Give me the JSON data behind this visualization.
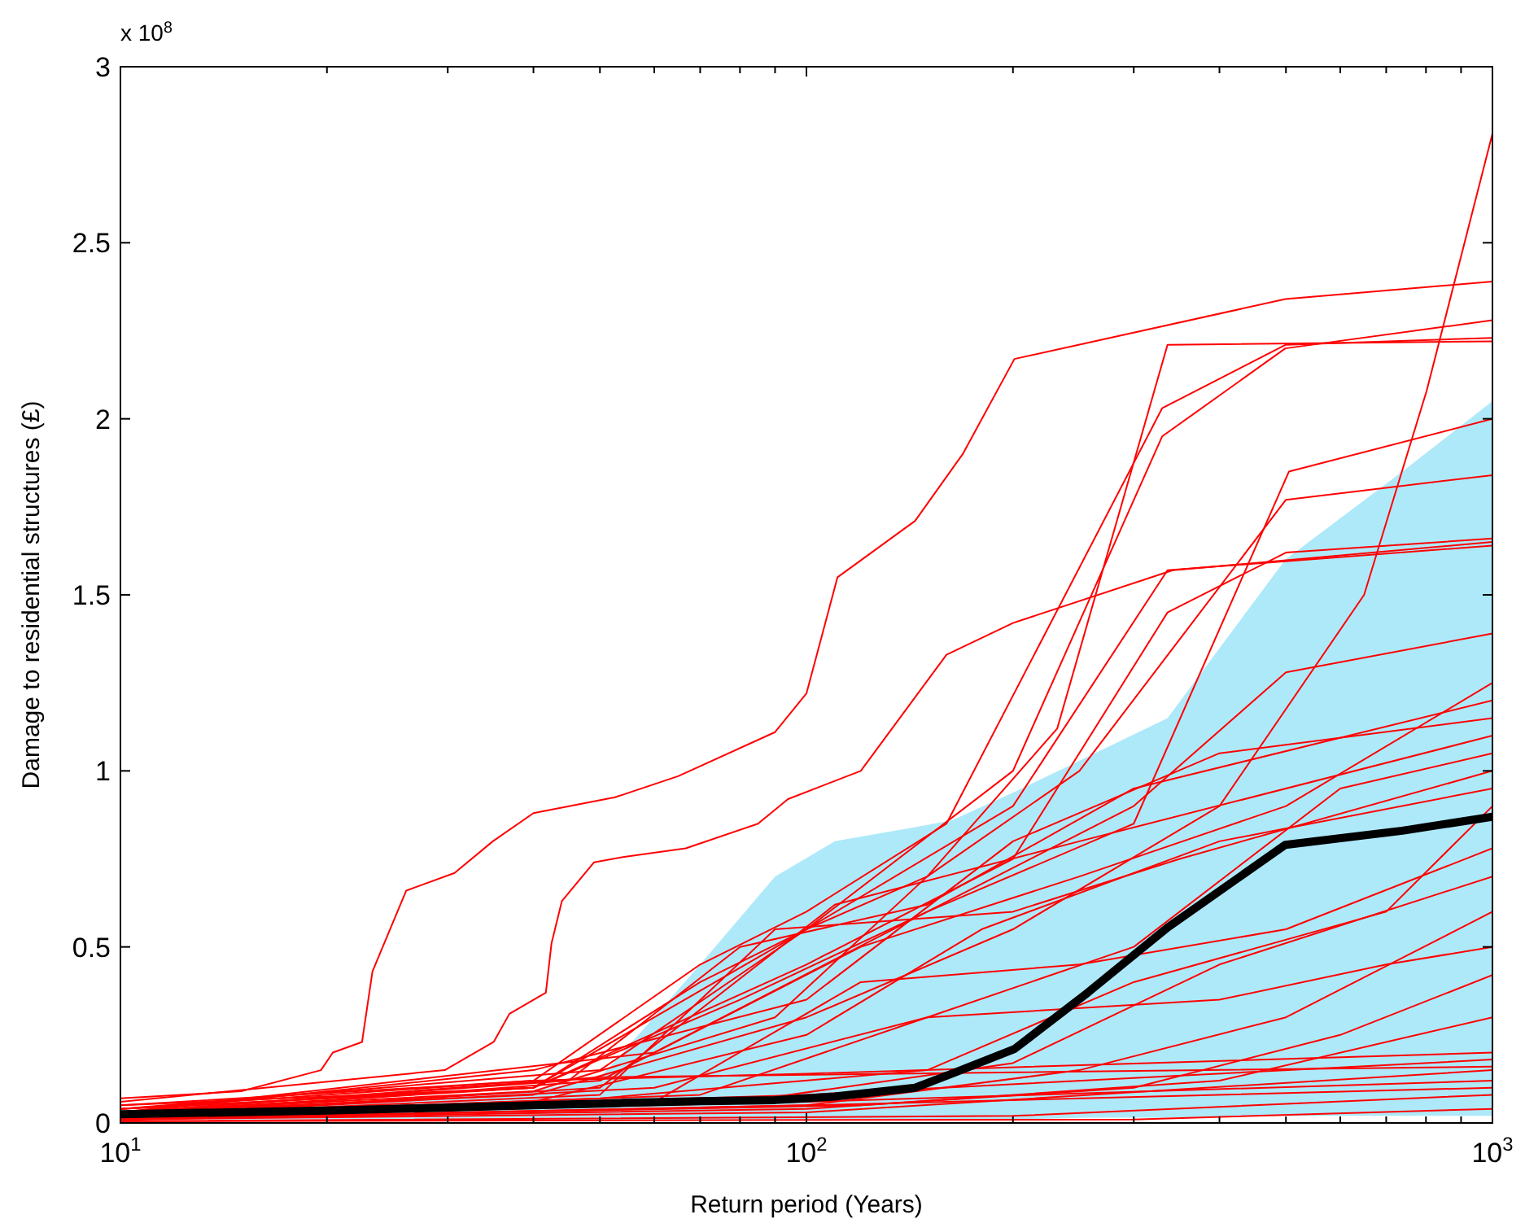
{
  "chart_data": {
    "type": "line",
    "xlabel": "Return period (Years)",
    "ylabel": "Damage to residential structures (£)",
    "annotations": [
      "x 10$^{8}$"
    ],
    "log": "x",
    "xlim": [
      10,
      1000
    ],
    "ylim": [
      0,
      3
    ],
    "xticks": [
      {
        "value": 10,
        "label": "10$^{1}$"
      },
      {
        "value": 20,
        "label": null
      },
      {
        "value": 30,
        "label": null
      },
      {
        "value": 40,
        "label": null
      },
      {
        "value": 50,
        "label": null
      },
      {
        "value": 60,
        "label": null
      },
      {
        "value": 70,
        "label": null
      },
      {
        "value": 80,
        "label": null
      },
      {
        "value": 90,
        "label": null
      },
      {
        "value": 100,
        "label": "10$^{2}$"
      },
      {
        "value": 200,
        "label": null
      },
      {
        "value": 300,
        "label": null
      },
      {
        "value": 400,
        "label": null
      },
      {
        "value": 500,
        "label": null
      },
      {
        "value": 600,
        "label": null
      },
      {
        "value": 700,
        "label": null
      },
      {
        "value": 800,
        "label": null
      },
      {
        "value": 900,
        "label": null
      },
      {
        "value": 1000,
        "label": "10$^{3}$"
      }
    ],
    "yticks": [
      0,
      0.5,
      1,
      1.5,
      2,
      2.5,
      3
    ],
    "grid": false,
    "series": [
      {
        "color": "#ff0000",
        "x": [
          10,
          15,
          19.6,
          20.4,
          22.5,
          23.3,
          26.1,
          30.7,
          34.9,
          40,
          52.6,
          65,
          90,
          100,
          111,
          144,
          169,
          201,
          499,
          1000
        ],
        "values": [
          0.07,
          0.09,
          0.15,
          0.2,
          0.23,
          0.43,
          0.66,
          0.71,
          0.8,
          0.88,
          0.925,
          0.985,
          1.11,
          1.22,
          1.55,
          1.71,
          1.9,
          2.17,
          2.34,
          2.39
        ]
      },
      {
        "color": "#ff0000",
        "x": [
          10,
          29.7,
          35,
          36.9,
          41.7,
          42.5,
          44,
          49,
          54,
          66.7,
          85,
          94,
          120,
          160,
          200,
          342,
          1000
        ],
        "values": [
          0.06,
          0.15,
          0.23,
          0.31,
          0.37,
          0.51,
          0.63,
          0.74,
          0.755,
          0.78,
          0.85,
          0.92,
          1.0,
          1.33,
          1.42,
          1.57,
          1.65
        ]
      },
      {
        "color": "#ff0000",
        "x": [
          10,
          40,
          60,
          100,
          150,
          232,
          336,
          1000
        ],
        "values": [
          0.05,
          0.1,
          0.3,
          0.55,
          0.7,
          1.12,
          2.21,
          2.22
        ]
      },
      {
        "color": "#ff0000",
        "x": [
          10,
          40,
          70,
          100,
          160,
          330,
          499,
          1000
        ],
        "values": [
          0.05,
          0.12,
          0.45,
          0.6,
          0.85,
          2.03,
          2.21,
          2.23
        ]
      },
      {
        "color": "#ff0000",
        "x": [
          10,
          40,
          70,
          100,
          200,
          330,
          499,
          1000
        ],
        "values": [
          0.04,
          0.1,
          0.4,
          0.55,
          1.0,
          1.95,
          2.2,
          2.28
        ]
      },
      {
        "color": "#ff0000",
        "x": [
          10,
          40,
          100,
          200,
          400,
          650,
          802,
          1000
        ],
        "values": [
          0.03,
          0.08,
          0.3,
          0.55,
          0.9,
          1.5,
          2.08,
          2.81
        ]
      },
      {
        "color": "#ff0000",
        "x": [
          10,
          40,
          80,
          150,
          300,
          505,
          1000
        ],
        "values": [
          0.04,
          0.1,
          0.35,
          0.6,
          0.85,
          1.85,
          2.0
        ]
      },
      {
        "color": "#ff0000",
        "x": [
          10,
          40,
          90,
          150,
          250,
          500,
          1000
        ],
        "values": [
          0.03,
          0.09,
          0.3,
          0.7,
          1.0,
          1.77,
          1.84
        ]
      },
      {
        "color": "#ff0000",
        "x": [
          10,
          50,
          100,
          200,
          336,
          1000
        ],
        "values": [
          0.04,
          0.15,
          0.55,
          0.9,
          1.57,
          1.64
        ]
      },
      {
        "color": "#ff0000",
        "x": [
          10,
          40,
          100,
          200,
          336,
          500,
          1000
        ],
        "values": [
          0.03,
          0.1,
          0.45,
          0.75,
          1.45,
          1.62,
          1.66
        ]
      },
      {
        "color": "#ff0000",
        "x": [
          10,
          60,
          150,
          300,
          500,
          1000
        ],
        "values": [
          0.03,
          0.2,
          0.6,
          0.9,
          1.28,
          1.39
        ]
      },
      {
        "color": "#ff0000",
        "x": [
          10,
          50,
          120,
          250,
          500,
          1000
        ],
        "values": [
          0.02,
          0.12,
          0.5,
          0.7,
          0.9,
          1.25
        ]
      },
      {
        "color": "#ff0000",
        "x": [
          10,
          40,
          100,
          200,
          400,
          1000
        ],
        "values": [
          0.03,
          0.15,
          0.35,
          0.8,
          1.05,
          1.15
        ]
      },
      {
        "color": "#ff0000",
        "x": [
          10,
          60,
          150,
          300,
          600,
          1000
        ],
        "values": [
          0.02,
          0.1,
          0.3,
          0.5,
          0.95,
          1.05
        ]
      },
      {
        "color": "#ff0000",
        "x": [
          10,
          50,
          90,
          200,
          350,
          1000
        ],
        "values": [
          0.02,
          0.08,
          0.55,
          0.6,
          0.75,
          1.0
        ]
      },
      {
        "color": "#ff0000",
        "x": [
          10,
          40,
          100,
          180,
          400,
          1000
        ],
        "values": [
          0.02,
          0.06,
          0.25,
          0.55,
          0.8,
          0.95
        ]
      },
      {
        "color": "#ff0000",
        "x": [
          10,
          50,
          150,
          300,
          700,
          1000
        ],
        "values": [
          0.02,
          0.07,
          0.15,
          0.4,
          0.6,
          0.9
        ]
      },
      {
        "color": "#ff0000",
        "x": [
          10,
          60,
          120,
          250,
          500,
          1000
        ],
        "values": [
          0.02,
          0.06,
          0.4,
          0.45,
          0.55,
          0.78
        ]
      },
      {
        "color": "#ff0000",
        "x": [
          10,
          80,
          200,
          400,
          1000
        ],
        "values": [
          0.01,
          0.06,
          0.17,
          0.45,
          0.7
        ]
      },
      {
        "color": "#ff0000",
        "x": [
          10,
          100,
          250,
          500,
          1000
        ],
        "values": [
          0.01,
          0.05,
          0.15,
          0.3,
          0.6
        ]
      },
      {
        "color": "#ff0000",
        "x": [
          10,
          70,
          150,
          400,
          700,
          1000
        ],
        "values": [
          0.02,
          0.08,
          0.3,
          0.35,
          0.45,
          0.5
        ]
      },
      {
        "color": "#ff0000",
        "x": [
          10,
          100,
          300,
          600,
          1000
        ],
        "values": [
          0.01,
          0.04,
          0.1,
          0.25,
          0.42
        ]
      },
      {
        "color": "#ff0000",
        "x": [
          10,
          120,
          400,
          1000
        ],
        "values": [
          0.01,
          0.05,
          0.12,
          0.3
        ]
      },
      {
        "color": "#ff0000",
        "x": [
          10,
          50,
          110,
          250,
          1000
        ],
        "values": [
          0.02,
          0.1,
          0.62,
          0.8,
          1.1
        ]
      },
      {
        "color": "#ff0000",
        "x": [
          10,
          45,
          80,
          150,
          300,
          1000
        ],
        "values": [
          0.03,
          0.12,
          0.5,
          0.62,
          0.95,
          1.2
        ]
      },
      {
        "color": "#ff0000",
        "x": [
          10,
          100,
          1000
        ],
        "values": [
          0.01,
          0.03,
          0.15
        ]
      },
      {
        "color": "#ff0000",
        "x": [
          10,
          100,
          1000
        ],
        "values": [
          0.015,
          0.06,
          0.12
        ]
      },
      {
        "color": "#ff0000",
        "x": [
          10,
          200,
          1000
        ],
        "values": [
          0.005,
          0.02,
          0.08
        ]
      },
      {
        "color": "#ff0000",
        "x": [
          10,
          100,
          1000
        ],
        "values": [
          0.02,
          0.08,
          0.18
        ]
      },
      {
        "color": "#ff0000",
        "x": [
          10,
          50,
          1000
        ],
        "values": [
          0.03,
          0.13,
          0.16
        ]
      },
      {
        "color": "#ff0000",
        "x": [
          10,
          40,
          100,
          1000
        ],
        "values": [
          0.04,
          0.12,
          0.14,
          0.2
        ]
      },
      {
        "color": "#ff0000",
        "x": [
          10,
          300,
          1000
        ],
        "values": [
          0.005,
          0.01,
          0.04
        ]
      },
      {
        "color": "#ff0000",
        "x": [
          10,
          100,
          1000
        ],
        "values": [
          0.01,
          0.05,
          0.1
        ]
      },
      {
        "color": "#000000",
        "x": [
          10,
          20,
          40,
          50,
          54,
          70,
          90,
          110,
          144,
          163,
          201,
          257,
          336,
          499,
          739,
          1000
        ],
        "values": [
          0.025,
          0.035,
          0.05,
          0.055,
          0.057,
          0.062,
          0.065,
          0.075,
          0.1,
          0.14,
          0.21,
          0.37,
          0.555,
          0.79,
          0.83,
          0.87
        ],
        "lower": [
          0.01,
          0.01,
          0.01,
          0.01,
          0.01,
          0.01,
          0.01,
          0.01,
          0.01,
          0.01,
          0.01,
          0.015,
          0.015,
          0.02,
          0.02,
          0.02
        ],
        "upper": [
          0.03,
          0.05,
          0.09,
          0.13,
          0.2,
          0.45,
          0.7,
          0.8,
          0.84,
          0.86,
          0.94,
          1.04,
          1.15,
          1.6,
          1.85,
          2.05
        ]
      }
    ]
  }
}
